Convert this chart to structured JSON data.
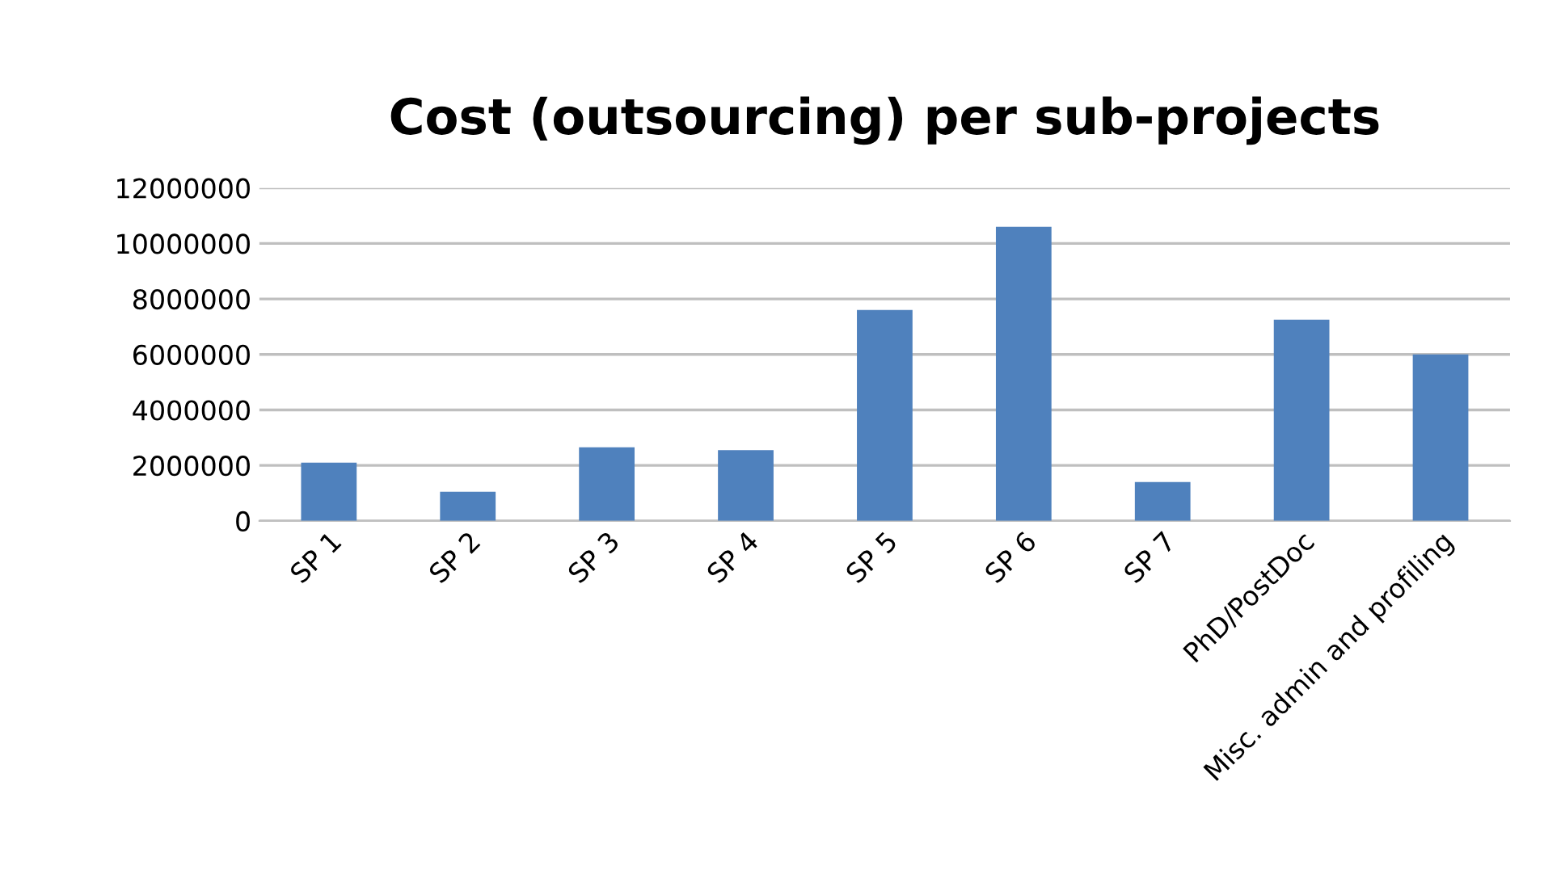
{
  "chart_data": {
    "type": "bar",
    "title": "Cost (outsourcing) per sub-projects",
    "categories": [
      "SP 1",
      "SP 2",
      "SP 3",
      "SP 4",
      "SP 5",
      "SP 6",
      "SP 7",
      "PhD/PostDoc",
      "Misc. admin and profiling"
    ],
    "values": [
      2100000,
      1050000,
      2650000,
      2550000,
      7600000,
      10600000,
      1400000,
      7250000,
      6000000
    ],
    "color": "#4f81bd",
    "ylim": [
      0,
      12000000
    ],
    "yticks": [
      0,
      2000000,
      4000000,
      6000000,
      8000000,
      10000000,
      12000000
    ],
    "grid": "y"
  }
}
